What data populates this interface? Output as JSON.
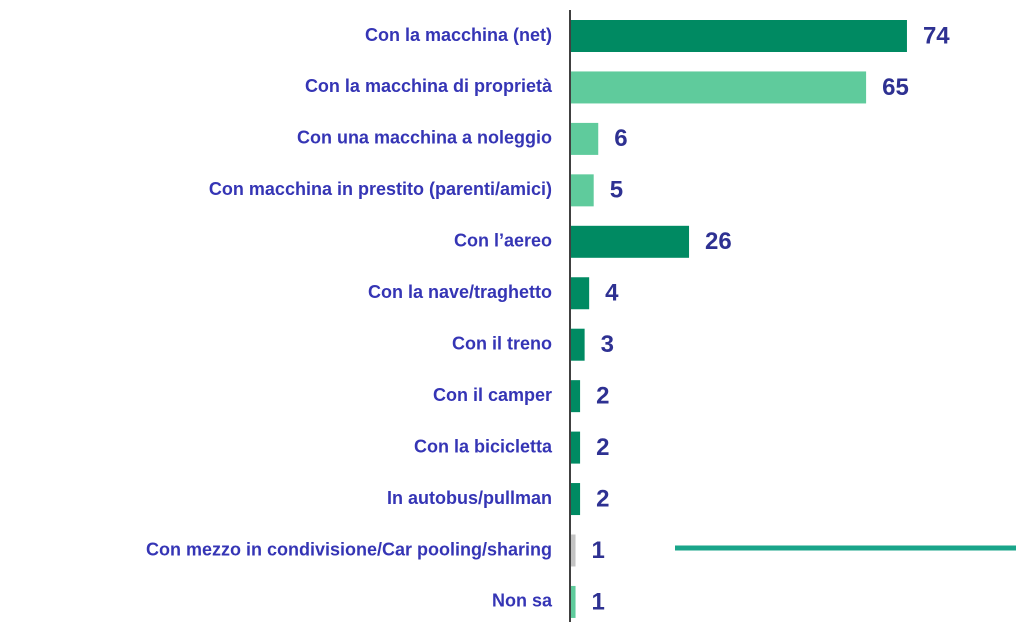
{
  "chart_data": {
    "type": "bar",
    "orientation": "horizontal",
    "categories": [
      "Con la macchina (net)",
      "Con la macchina di proprietà",
      "Con una macchina a noleggio",
      "Con macchina in prestito (parenti/amici)",
      "Con l’aereo",
      "Con la nave/traghetto",
      "Con il treno",
      "Con il camper",
      "Con la bicicletta",
      "In autobus/pullman",
      "Con mezzo in condivisione/Car pooling/sharing",
      "Non sa"
    ],
    "values": [
      74,
      65,
      6,
      5,
      26,
      4,
      3,
      2,
      2,
      2,
      1,
      1
    ],
    "colors": [
      "#008a62",
      "#5fcb9c",
      "#5fcb9c",
      "#5fcb9c",
      "#008a62",
      "#008a62",
      "#008a62",
      "#008a62",
      "#008a62",
      "#008a62",
      "#c4c4c4",
      "#5fcb9c"
    ]
  }
}
